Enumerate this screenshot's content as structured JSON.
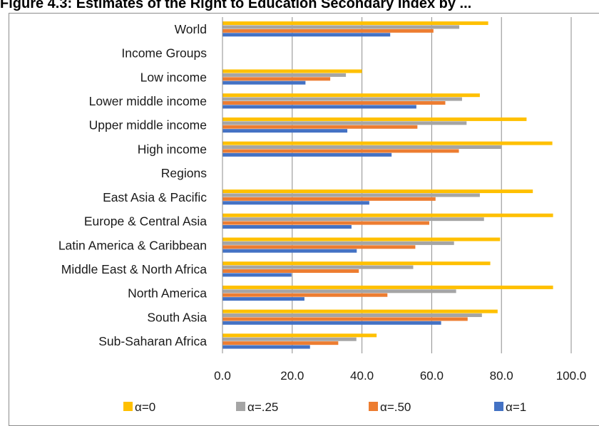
{
  "title": "Figure 4.3: Estimates of the Right to Education Secondary Index by ...",
  "chart_data": {
    "type": "bar",
    "orientation": "horizontal",
    "categories": [
      "World",
      "Income Groups",
      "Low income",
      "Lower middle income",
      "Upper middle income",
      "High income",
      "Regions",
      "East Asia & Pacific",
      "Europe & Central Asia",
      "Latin America & Caribbean",
      "Middle East & North Africa",
      "North America",
      "South Asia",
      "Sub-Saharan Africa"
    ],
    "series": [
      {
        "name": "α=0",
        "color": "#FFC000",
        "values": [
          76.2,
          null,
          40.0,
          73.8,
          87.2,
          94.6,
          null,
          89.0,
          94.8,
          79.6,
          76.8,
          94.8,
          78.9,
          44.2
        ]
      },
      {
        "name": "α=.25",
        "color": "#A5A5A5",
        "values": [
          67.9,
          null,
          35.4,
          68.7,
          70.0,
          80.0,
          null,
          73.8,
          75.0,
          66.4,
          54.7,
          67.0,
          74.4,
          38.4
        ]
      },
      {
        "name": "α=.50",
        "color": "#ED7D31",
        "values": [
          60.5,
          null,
          30.9,
          63.9,
          55.9,
          67.8,
          null,
          61.1,
          59.3,
          55.3,
          39.1,
          47.3,
          70.3,
          33.2
        ]
      },
      {
        "name": "α=1",
        "color": "#4472C4",
        "values": [
          48.1,
          null,
          23.8,
          55.6,
          35.8,
          48.5,
          null,
          42.1,
          37.0,
          38.5,
          19.8,
          23.5,
          62.7,
          25.1
        ]
      }
    ],
    "xlim": [
      0,
      100
    ],
    "ticks": [
      "0.0",
      "20.0",
      "40.0",
      "60.0",
      "80.0",
      "100.0"
    ],
    "grid": true,
    "legend_position": "bottom"
  }
}
